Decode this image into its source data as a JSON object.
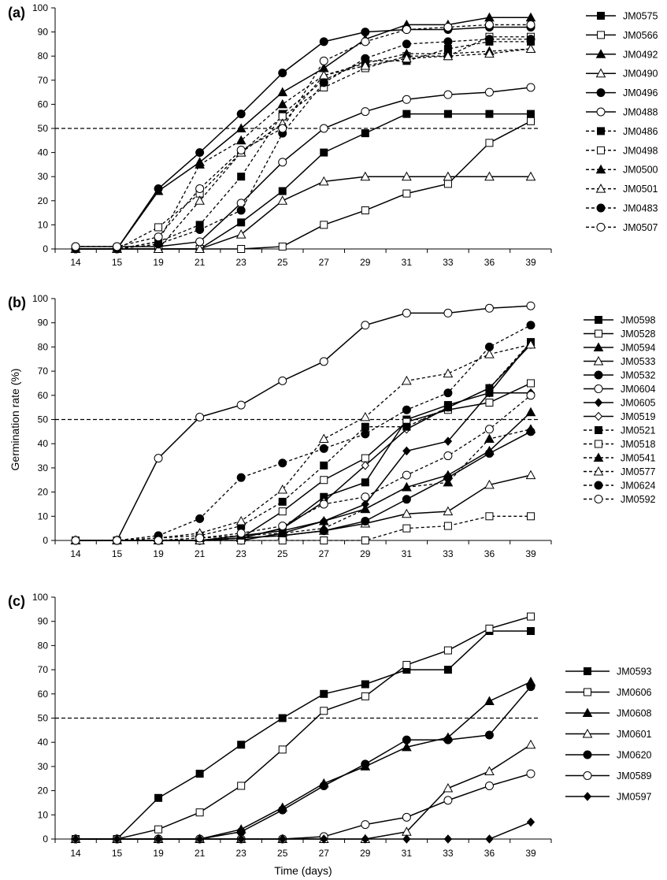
{
  "chart_data": [
    {
      "type": "line",
      "panel_label": "(a)",
      "categories": [
        "14",
        "15",
        "19",
        "21",
        "23",
        "25",
        "27",
        "29",
        "31",
        "33",
        "36",
        "39"
      ],
      "ylim": [
        0,
        100
      ],
      "yticks": [
        "0",
        "10",
        "20",
        "30",
        "40",
        "50",
        "60",
        "70",
        "80",
        "90",
        "100"
      ],
      "reference_line": 50,
      "legend_position": "right",
      "series": [
        {
          "name": "JM0575",
          "marker": "square-filled",
          "dash": false,
          "values": [
            0,
            0,
            0,
            0,
            11,
            24,
            40,
            48,
            56,
            56,
            56,
            56
          ]
        },
        {
          "name": "JM0566",
          "marker": "square-open",
          "dash": false,
          "values": [
            0,
            0,
            0,
            0,
            0,
            1,
            10,
            16,
            23,
            27,
            44,
            53
          ]
        },
        {
          "name": "JM0492",
          "marker": "triangle-filled",
          "dash": false,
          "values": [
            0,
            0,
            24,
            36,
            50,
            65,
            75,
            87,
            93,
            93,
            96,
            96
          ]
        },
        {
          "name": "JM0490",
          "marker": "triangle-open",
          "dash": false,
          "values": [
            0,
            0,
            0,
            0,
            6,
            20,
            28,
            30,
            30,
            30,
            30,
            30
          ]
        },
        {
          "name": "JM0496",
          "marker": "circle-filled",
          "dash": false,
          "values": [
            0,
            0,
            25,
            40,
            56,
            73,
            86,
            90,
            91,
            91,
            92,
            92
          ]
        },
        {
          "name": "JM0488",
          "marker": "circle-open",
          "dash": false,
          "values": [
            1,
            1,
            1,
            3,
            19,
            36,
            50,
            57,
            62,
            64,
            65,
            67
          ]
        },
        {
          "name": "JM0486",
          "marker": "square-filled",
          "dash": true,
          "values": [
            0,
            0,
            3,
            10,
            30,
            56,
            70,
            78,
            78,
            83,
            86,
            86
          ]
        },
        {
          "name": "JM0498",
          "marker": "square-open",
          "dash": true,
          "values": [
            0,
            0,
            9,
            23,
            40,
            55,
            67,
            75,
            80,
            80,
            88,
            88
          ]
        },
        {
          "name": "JM0500",
          "marker": "triangle-filled",
          "dash": true,
          "values": [
            0,
            0,
            3,
            35,
            45,
            60,
            72,
            77,
            81,
            81,
            82,
            83
          ]
        },
        {
          "name": "JM0501",
          "marker": "triangle-open",
          "dash": true,
          "values": [
            0,
            0,
            0,
            20,
            40,
            52,
            72,
            76,
            79,
            80,
            81,
            83
          ]
        },
        {
          "name": "JM0483",
          "marker": "circle-filled",
          "dash": true,
          "values": [
            0,
            0,
            2,
            8,
            16,
            48,
            69,
            79,
            85,
            86,
            87,
            87
          ]
        },
        {
          "name": "JM0507",
          "marker": "circle-open",
          "dash": true,
          "values": [
            1,
            1,
            5,
            25,
            41,
            50,
            78,
            86,
            91,
            92,
            93,
            93
          ]
        }
      ]
    },
    {
      "type": "line",
      "panel_label": "(b)",
      "categories": [
        "14",
        "15",
        "19",
        "21",
        "23",
        "25",
        "27",
        "29",
        "31",
        "33",
        "36",
        "39"
      ],
      "ylim": [
        0,
        100
      ],
      "yticks": [
        "0",
        "10",
        "20",
        "30",
        "40",
        "50",
        "60",
        "70",
        "80",
        "90",
        "100"
      ],
      "ylabel": "Germination rate (%)",
      "reference_line": 50,
      "legend_position": "right",
      "series": [
        {
          "name": "JM0598",
          "marker": "square-filled",
          "dash": false,
          "values": [
            0,
            0,
            0,
            0,
            1,
            5,
            18,
            24,
            50,
            56,
            61,
            82
          ]
        },
        {
          "name": "JM0528",
          "marker": "square-open",
          "dash": false,
          "values": [
            0,
            0,
            0,
            0,
            1,
            12,
            25,
            34,
            49,
            54,
            57,
            65
          ]
        },
        {
          "name": "JM0594",
          "marker": "triangle-filled",
          "dash": false,
          "values": [
            0,
            0,
            0,
            0,
            2,
            4,
            8,
            13,
            22,
            27,
            37,
            53
          ]
        },
        {
          "name": "JM0533",
          "marker": "triangle-open",
          "dash": false,
          "values": [
            0,
            0,
            0,
            0,
            1,
            2,
            4,
            7,
            11,
            12,
            23,
            27
          ]
        },
        {
          "name": "JM0532",
          "marker": "circle-filled",
          "dash": false,
          "values": [
            0,
            0,
            0,
            0,
            1,
            2,
            4,
            8,
            17,
            26,
            36,
            45
          ]
        },
        {
          "name": "JM0604",
          "marker": "circle-open",
          "dash": false,
          "values": [
            0,
            0,
            34,
            51,
            56,
            66,
            74,
            89,
            94,
            94,
            96,
            97
          ]
        },
        {
          "name": "JM0605",
          "marker": "diamond-filled",
          "dash": false,
          "values": [
            0,
            0,
            0,
            0,
            0,
            3,
            8,
            15,
            37,
            41,
            61,
            61
          ]
        },
        {
          "name": "JM0519",
          "marker": "diamond-open",
          "dash": false,
          "values": [
            0,
            0,
            0,
            0,
            1,
            5,
            16,
            31,
            46,
            55,
            63,
            81
          ]
        },
        {
          "name": "JM0521",
          "marker": "square-filled",
          "dash": true,
          "values": [
            0,
            0,
            1,
            2,
            6,
            16,
            31,
            47,
            47,
            55,
            63,
            82
          ]
        },
        {
          "name": "JM0518",
          "marker": "square-open",
          "dash": true,
          "values": [
            0,
            0,
            0,
            0,
            0,
            0,
            0,
            0,
            5,
            6,
            10,
            10
          ]
        },
        {
          "name": "JM0541",
          "marker": "triangle-filled",
          "dash": true,
          "values": [
            0,
            0,
            0,
            1,
            2,
            3,
            5,
            13,
            22,
            24,
            42,
            46
          ]
        },
        {
          "name": "JM0577",
          "marker": "triangle-open",
          "dash": true,
          "values": [
            0,
            0,
            1,
            3,
            8,
            21,
            42,
            51,
            66,
            69,
            77,
            81
          ]
        },
        {
          "name": "JM0624",
          "marker": "circle-filled",
          "dash": true,
          "values": [
            0,
            0,
            2,
            9,
            26,
            32,
            38,
            44,
            54,
            61,
            80,
            89
          ]
        },
        {
          "name": "JM0592",
          "marker": "circle-open",
          "dash": true,
          "values": [
            0,
            0,
            0,
            1,
            3,
            6,
            15,
            18,
            27,
            35,
            46,
            60
          ]
        }
      ]
    },
    {
      "type": "line",
      "panel_label": "(c)",
      "categories": [
        "14",
        "15",
        "19",
        "21",
        "23",
        "25",
        "27",
        "29",
        "31",
        "33",
        "36",
        "39"
      ],
      "ylim": [
        0,
        100
      ],
      "yticks": [
        "0",
        "10",
        "20",
        "30",
        "40",
        "50",
        "60",
        "70",
        "80",
        "90",
        "100"
      ],
      "xlabel": "Time (days)",
      "reference_line": 50,
      "legend_position": "right",
      "series": [
        {
          "name": "JM0593",
          "marker": "square-filled",
          "dash": false,
          "values": [
            0,
            0,
            17,
            27,
            39,
            50,
            60,
            64,
            70,
            70,
            86,
            86
          ]
        },
        {
          "name": "JM0606",
          "marker": "square-open",
          "dash": false,
          "values": [
            0,
            0,
            4,
            11,
            22,
            37,
            53,
            59,
            72,
            78,
            87,
            92
          ]
        },
        {
          "name": "JM0608",
          "marker": "triangle-filled",
          "dash": false,
          "values": [
            0,
            0,
            0,
            0,
            4,
            13,
            23,
            30,
            38,
            42,
            57,
            65
          ]
        },
        {
          "name": "JM0601",
          "marker": "triangle-open",
          "dash": false,
          "values": [
            0,
            0,
            0,
            0,
            0,
            0,
            0,
            0,
            3,
            21,
            28,
            39
          ]
        },
        {
          "name": "JM0620",
          "marker": "circle-filled",
          "dash": false,
          "values": [
            0,
            0,
            0,
            0,
            3,
            12,
            22,
            31,
            41,
            41,
            43,
            63
          ]
        },
        {
          "name": "JM0589",
          "marker": "circle-open",
          "dash": false,
          "values": [
            0,
            0,
            0,
            0,
            0,
            0,
            1,
            6,
            9,
            16,
            22,
            27
          ]
        },
        {
          "name": "JM0597",
          "marker": "diamond-filled",
          "dash": false,
          "values": [
            0,
            0,
            0,
            0,
            0,
            0,
            0,
            0,
            0,
            0,
            0,
            7
          ]
        }
      ]
    }
  ]
}
